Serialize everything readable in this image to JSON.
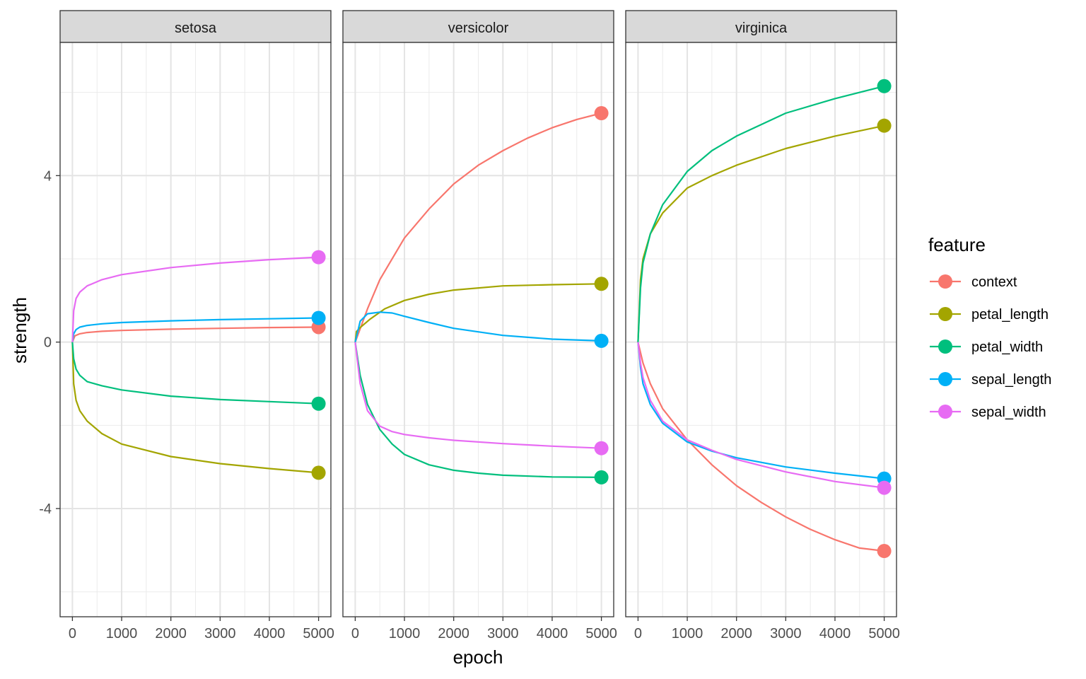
{
  "chart_data": {
    "type": "line",
    "xlabel": "epoch",
    "ylabel": "strength",
    "xlim": [
      -250,
      5250
    ],
    "ylim": [
      -6.6,
      7.2
    ],
    "x_ticks": [
      0,
      1000,
      2000,
      3000,
      4000,
      5000
    ],
    "y_ticks": [
      -4,
      0,
      4
    ],
    "x_tick_labels": [
      "0",
      "1000",
      "2000",
      "3000",
      "4000",
      "5000"
    ],
    "y_tick_labels": [
      "-4",
      "0",
      "4"
    ],
    "grid": true,
    "legend": {
      "title": "feature",
      "position": "right",
      "entries": [
        "context",
        "petal_length",
        "petal_width",
        "sepal_length",
        "sepal_width"
      ]
    },
    "colors": {
      "context": "#F8766D",
      "petal_length": "#A3A500",
      "petal_width": "#00BF7D",
      "sepal_length": "#00B0F6",
      "sepal_width": "#E76BF3"
    },
    "facets": [
      {
        "name": "setosa",
        "series": [
          {
            "feature": "context",
            "x": [
              0,
              50,
              150,
              300,
              600,
              1000,
              2000,
              3000,
              4000,
              5000
            ],
            "y": [
              0,
              0.15,
              0.2,
              0.23,
              0.26,
              0.28,
              0.31,
              0.33,
              0.35,
              0.36
            ]
          },
          {
            "feature": "petal_length",
            "x": [
              0,
              25,
              75,
              150,
              300,
              600,
              1000,
              2000,
              3000,
              4000,
              5000
            ],
            "y": [
              0,
              -1.0,
              -1.4,
              -1.65,
              -1.9,
              -2.2,
              -2.45,
              -2.75,
              -2.92,
              -3.04,
              -3.14
            ]
          },
          {
            "feature": "petal_width",
            "x": [
              0,
              25,
              75,
              150,
              300,
              600,
              1000,
              2000,
              3000,
              4000,
              5000
            ],
            "y": [
              0,
              -0.4,
              -0.65,
              -0.8,
              -0.95,
              -1.05,
              -1.15,
              -1.3,
              -1.38,
              -1.43,
              -1.48
            ]
          },
          {
            "feature": "sepal_length",
            "x": [
              0,
              25,
              75,
              150,
              300,
              600,
              1000,
              2000,
              3000,
              4000,
              5000
            ],
            "y": [
              0,
              0.2,
              0.3,
              0.36,
              0.4,
              0.44,
              0.47,
              0.51,
              0.54,
              0.56,
              0.58
            ]
          },
          {
            "feature": "sepal_width",
            "x": [
              0,
              25,
              75,
              150,
              300,
              600,
              1000,
              2000,
              3000,
              4000,
              5000
            ],
            "y": [
              0,
              0.75,
              1.05,
              1.2,
              1.35,
              1.5,
              1.62,
              1.79,
              1.9,
              1.98,
              2.04
            ]
          }
        ]
      },
      {
        "name": "versicolor",
        "series": [
          {
            "feature": "context",
            "x": [
              0,
              250,
              500,
              1000,
              1500,
              2000,
              2500,
              3000,
              3500,
              4000,
              4500,
              5000
            ],
            "y": [
              0,
              0.8,
              1.5,
              2.5,
              3.2,
              3.8,
              4.25,
              4.6,
              4.9,
              5.15,
              5.35,
              5.5
            ]
          },
          {
            "feature": "petal_length",
            "x": [
              0,
              25,
              100,
              300,
              600,
              1000,
              1500,
              2000,
              3000,
              4000,
              5000
            ],
            "y": [
              0,
              0.25,
              0.35,
              0.55,
              0.8,
              1.0,
              1.15,
              1.25,
              1.35,
              1.38,
              1.4
            ]
          },
          {
            "feature": "petal_width",
            "x": [
              0,
              100,
              250,
              500,
              750,
              1000,
              1500,
              2000,
              2500,
              3000,
              4000,
              5000
            ],
            "y": [
              0,
              -0.8,
              -1.5,
              -2.1,
              -2.45,
              -2.7,
              -2.95,
              -3.08,
              -3.15,
              -3.2,
              -3.24,
              -3.25
            ]
          },
          {
            "feature": "sepal_length",
            "x": [
              0,
              100,
              250,
              500,
              750,
              1000,
              1500,
              2000,
              3000,
              4000,
              5000
            ],
            "y": [
              0,
              0.5,
              0.68,
              0.72,
              0.7,
              0.62,
              0.47,
              0.33,
              0.16,
              0.07,
              0.03
            ]
          },
          {
            "feature": "sepal_width",
            "x": [
              0,
              100,
              250,
              500,
              750,
              1000,
              1500,
              2000,
              3000,
              4000,
              5000
            ],
            "y": [
              0,
              -1.0,
              -1.65,
              -2.02,
              -2.15,
              -2.22,
              -2.3,
              -2.36,
              -2.44,
              -2.5,
              -2.55
            ]
          }
        ]
      },
      {
        "name": "virginica",
        "series": [
          {
            "feature": "context",
            "x": [
              0,
              100,
              250,
              500,
              1000,
              1500,
              2000,
              2500,
              3000,
              3500,
              4000,
              4500,
              5000
            ],
            "y": [
              0,
              -0.5,
              -1.0,
              -1.6,
              -2.35,
              -2.95,
              -3.45,
              -3.85,
              -4.2,
              -4.5,
              -4.75,
              -4.95,
              -5.02
            ]
          },
          {
            "feature": "petal_length",
            "x": [
              0,
              50,
              100,
              250,
              500,
              1000,
              1500,
              2000,
              3000,
              4000,
              5000
            ],
            "y": [
              0,
              1.5,
              2.0,
              2.6,
              3.1,
              3.7,
              4.0,
              4.25,
              4.65,
              4.95,
              5.2
            ]
          },
          {
            "feature": "petal_width",
            "x": [
              0,
              50,
              100,
              250,
              500,
              1000,
              1500,
              2000,
              3000,
              4000,
              5000
            ],
            "y": [
              0,
              1.3,
              1.9,
              2.6,
              3.3,
              4.1,
              4.6,
              4.95,
              5.5,
              5.85,
              6.15
            ]
          },
          {
            "feature": "sepal_length",
            "x": [
              0,
              50,
              100,
              250,
              500,
              1000,
              1500,
              2000,
              3000,
              4000,
              5000
            ],
            "y": [
              0,
              -0.6,
              -1.0,
              -1.5,
              -1.95,
              -2.4,
              -2.62,
              -2.78,
              -3.0,
              -3.15,
              -3.28
            ]
          },
          {
            "feature": "sepal_width",
            "x": [
              0,
              50,
              100,
              250,
              500,
              1000,
              1500,
              2000,
              3000,
              4000,
              5000
            ],
            "y": [
              0,
              -0.5,
              -0.85,
              -1.4,
              -1.9,
              -2.35,
              -2.6,
              -2.82,
              -3.12,
              -3.35,
              -3.5
            ]
          }
        ]
      }
    ]
  }
}
